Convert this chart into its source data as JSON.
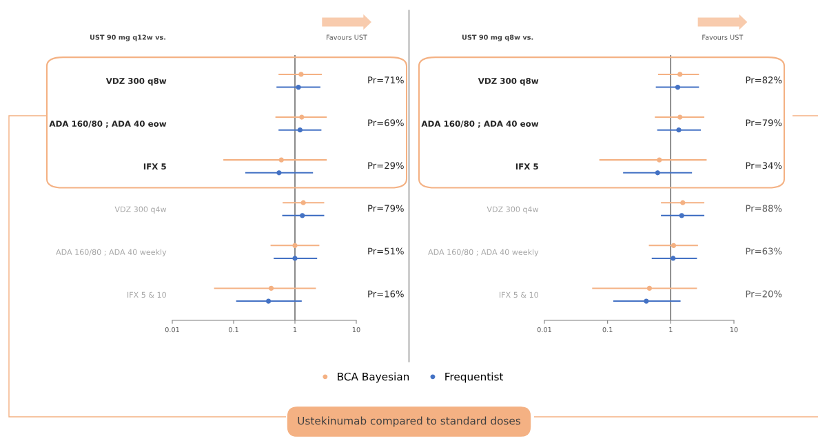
{
  "chart_data": [
    {
      "type": "scatter",
      "orientation": "horizontal",
      "title": "UST 90 mg q12w vs.",
      "categories": [
        "VDZ 300 q8w",
        "ADA 160/80 ; ADA 40 eow",
        "IFX 5",
        "VDZ 300 q4w",
        "ADA 160/80 ; ADA 40 weekly",
        "IFX 5 & 10"
      ],
      "series": [
        {
          "name": "BCA Bayesian",
          "color": "#f4b183",
          "values": [
            1.26,
            1.29,
            0.6,
            1.37,
            1.0,
            0.41
          ],
          "errors": [
            [
              0.54,
              2.75
            ],
            [
              0.48,
              3.3
            ],
            [
              0.068,
              3.3
            ],
            [
              0.63,
              3.0
            ],
            [
              0.4,
              2.5
            ],
            [
              0.048,
              2.2
            ]
          ]
        },
        {
          "name": "Frequentist",
          "color": "#4472c4",
          "values": [
            1.14,
            1.21,
            0.55,
            1.32,
            1.0,
            0.37
          ],
          "errors": [
            [
              0.5,
              2.6
            ],
            [
              0.54,
              2.7
            ],
            [
              0.155,
              1.97
            ],
            [
              0.62,
              3.0
            ],
            [
              0.45,
              2.3
            ],
            [
              0.11,
              1.29
            ]
          ]
        }
      ],
      "log": "x",
      "xlim": [
        0.01,
        10
      ],
      "xticks": [
        0.01,
        0.1,
        1,
        10
      ],
      "marker": "circle",
      "legend": "bottom",
      "ref_lines": [
        {
          "axis": "x",
          "value": 1,
          "color": "#595959"
        }
      ],
      "annotations": [
        "Pr=71%",
        "Pr=69%",
        "Pr=29%",
        "Pr=79%",
        "Pr=51%",
        "Pr=16%",
        "Favours UST",
        "Ustekinumab compared to standard doses"
      ]
    },
    {
      "type": "scatter",
      "orientation": "horizontal",
      "title": "UST 90 mg q8w vs.",
      "categories": [
        "VDZ 300 q8w",
        "ADA 160/80 ; ADA 40 eow",
        "IFX 5",
        "VDZ 300 q4w",
        "ADA 160/80 ; ADA 40 weekly",
        "IFX 5 & 10"
      ],
      "series": [
        {
          "color": "#f4b183",
          "values": [
            1.4,
            1.4,
            0.66,
            1.55,
            1.11,
            0.46
          ],
          "errors": [
            [
              0.63,
              2.8
            ],
            [
              0.56,
              3.4
            ],
            [
              0.074,
              3.7
            ],
            [
              0.7,
              3.4
            ],
            [
              0.45,
              2.7
            ],
            [
              0.057,
              2.6
            ]
          ]
        },
        {
          "color": "#4472c4",
          "values": [
            1.29,
            1.34,
            0.62,
            1.49,
            1.09,
            0.41
          ],
          "errors": [
            [
              0.58,
              2.8
            ],
            [
              0.61,
              3.0
            ],
            [
              0.176,
              2.17
            ],
            [
              0.7,
              3.4
            ],
            [
              0.5,
              2.6
            ],
            [
              0.123,
              1.43
            ]
          ]
        }
      ],
      "log": "x",
      "xlim": [
        0.01,
        10
      ],
      "xticks": [
        0.01,
        0.1,
        1,
        10
      ],
      "marker": "circle",
      "ref_lines": [
        {
          "axis": "x",
          "value": 1,
          "color": "#595959"
        }
      ],
      "annotations": [
        "Pr=82%",
        "Pr=79%",
        "Pr=34%",
        "Pr=88%",
        "Pr=63%",
        "Pr=20%",
        "Favours UST"
      ]
    }
  ]
}
